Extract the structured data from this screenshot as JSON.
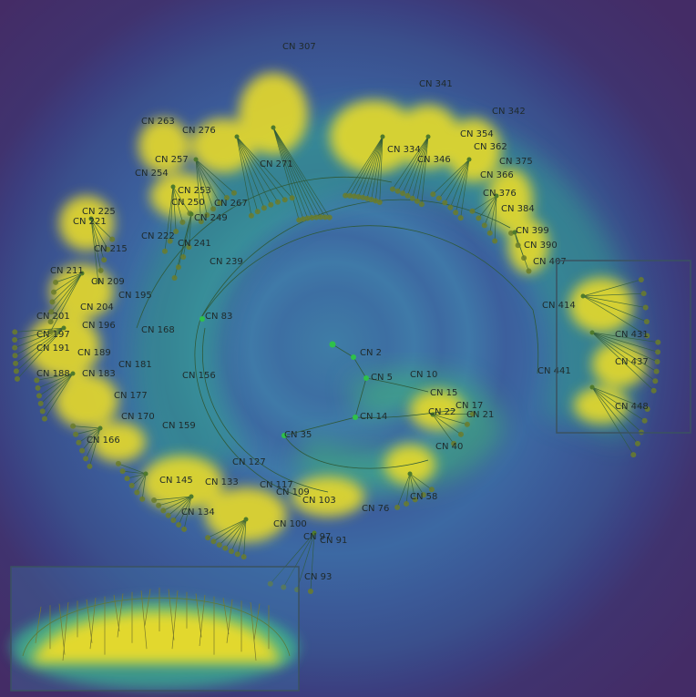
{
  "labels": {
    "root_children": [
      "CN 2",
      "CN 5",
      "CN 10",
      "CN 14",
      "CN 15",
      "CN 17",
      "CN 21",
      "CN 22",
      "CN 35",
      "CN 40",
      "CN 58",
      "CN 76",
      "CN 83"
    ],
    "branch_left": [
      "CN 109",
      "CN 117",
      "CN 127",
      "CN 133",
      "CN 134",
      "CN 145",
      "CN 156",
      "CN 159",
      "CN 166",
      "CN 168",
      "CN 170",
      "CN 177",
      "CN 181",
      "CN 183",
      "CN 188",
      "CN 189",
      "CN 191",
      "CN 195",
      "CN 196",
      "CN 197",
      "CN 201",
      "CN 204",
      "CN 209",
      "CN 211",
      "CN 215",
      "CN 221",
      "CN 225",
      "CN 222"
    ],
    "branch_top": [
      "CN 239",
      "CN 241",
      "CN 249",
      "CN 250",
      "CN 253",
      "CN 254",
      "CN 257",
      "CN 263",
      "CN 267",
      "CN 271",
      "CN 276",
      "CN 307",
      "CN 334",
      "CN 341",
      "CN 342",
      "CN 346",
      "CN 354",
      "CN 362",
      "CN 366",
      "CN 375",
      "CN 376",
      "CN 384",
      "CN 390",
      "CN 399",
      "CN 407",
      "CN 414",
      "CN 431",
      "CN 437",
      "CN 441",
      "CN 448"
    ],
    "branch_bottom": [
      "CN 91",
      "CN 93",
      "CN 97",
      "CN 100",
      "CN 103"
    ]
  },
  "colors": {
    "heat_high": "#f2e22a",
    "heat_mid": "#56c06a",
    "heat_low": "#2a8f8a",
    "background_outer": "#442c66",
    "background_inner": "#3e7da6",
    "node": "#6b7d2a",
    "root_node": "#2ec14a",
    "edge": "#2f5a3a",
    "inset_border": "#3a5260"
  },
  "insets": {
    "detail_box": "zoom-highlight",
    "overview_box": "full-tree-overview"
  }
}
